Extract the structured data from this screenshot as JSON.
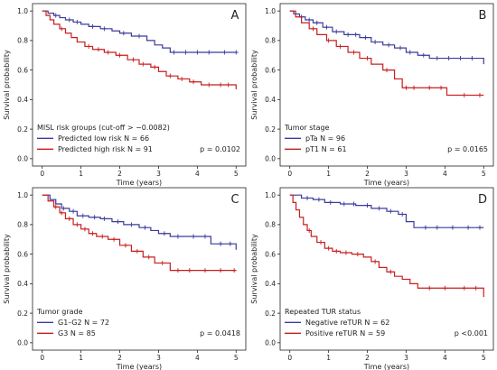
{
  "chart_data": [
    {
      "type": "line",
      "panel_letter": "A",
      "xlabel": "Time (years)",
      "ylabel": "Survival probability",
      "xlim": [
        0,
        5
      ],
      "ylim": [
        0,
        1
      ],
      "xticks": [
        "0",
        "1",
        "2",
        "3",
        "4",
        "5"
      ],
      "yticks": [
        "0.0",
        "0.2",
        "0.4",
        "0.6",
        "0.8",
        "1.0"
      ],
      "legend_title": "MISL risk groups (cut-off > −0.0082)",
      "legend_position": "bottom-left",
      "pvalue": "p = 0.0102",
      "series": [
        {
          "name": "Predicted low risk N = 66",
          "color": "#3b3b9c",
          "x": [
            0,
            0.15,
            0.3,
            0.45,
            0.6,
            0.8,
            1.0,
            1.2,
            1.5,
            1.8,
            2.0,
            2.3,
            2.7,
            2.9,
            3.1,
            3.3,
            5.0
          ],
          "y": [
            1.0,
            0.985,
            0.97,
            0.955,
            0.94,
            0.925,
            0.91,
            0.895,
            0.88,
            0.865,
            0.85,
            0.83,
            0.8,
            0.77,
            0.75,
            0.72,
            0.72
          ],
          "censor_x": [
            0.35,
            0.7,
            0.9,
            1.3,
            1.6,
            2.1,
            2.5,
            3.4,
            3.7,
            4.0,
            4.3,
            4.7,
            5.0
          ]
        },
        {
          "name": "Predicted high risk N = 91",
          "color": "#c81e1e",
          "x": [
            0,
            0.1,
            0.2,
            0.3,
            0.45,
            0.6,
            0.75,
            0.9,
            1.1,
            1.3,
            1.6,
            1.9,
            2.2,
            2.5,
            2.8,
            3.0,
            3.2,
            3.5,
            3.8,
            4.1,
            4.9,
            5.0
          ],
          "y": [
            1.0,
            0.97,
            0.94,
            0.91,
            0.88,
            0.85,
            0.82,
            0.79,
            0.76,
            0.74,
            0.72,
            0.7,
            0.67,
            0.64,
            0.62,
            0.59,
            0.56,
            0.54,
            0.52,
            0.5,
            0.5,
            0.47
          ],
          "censor_x": [
            0.5,
            1.2,
            1.45,
            1.7,
            2.0,
            2.35,
            2.6,
            2.9,
            3.3,
            3.6,
            3.9,
            4.3,
            4.6,
            4.8
          ]
        }
      ]
    },
    {
      "type": "line",
      "panel_letter": "B",
      "xlabel": "Time (years)",
      "ylabel": "Survival probability",
      "xlim": [
        0,
        5
      ],
      "ylim": [
        0,
        1
      ],
      "xticks": [
        "0",
        "1",
        "2",
        "3",
        "4",
        "5"
      ],
      "yticks": [
        "0.0",
        "0.2",
        "0.4",
        "0.6",
        "0.8",
        "1.0"
      ],
      "legend_title": "Tumor stage",
      "legend_position": "bottom-left",
      "pvalue": "p = 0.0165",
      "series": [
        {
          "name": "pTa N = 96",
          "color": "#3b3b9c",
          "x": [
            0,
            0.1,
            0.25,
            0.4,
            0.6,
            0.85,
            1.1,
            1.4,
            1.8,
            2.1,
            2.4,
            2.7,
            3.0,
            3.3,
            3.6,
            4.95,
            5.0
          ],
          "y": [
            1.0,
            0.98,
            0.96,
            0.94,
            0.92,
            0.89,
            0.86,
            0.84,
            0.82,
            0.79,
            0.77,
            0.75,
            0.72,
            0.7,
            0.68,
            0.68,
            0.64
          ],
          "censor_x": [
            0.3,
            0.5,
            0.7,
            0.95,
            1.2,
            1.5,
            1.7,
            1.95,
            2.2,
            2.55,
            2.85,
            3.1,
            3.45,
            3.8,
            4.1,
            4.4,
            4.7
          ]
        },
        {
          "name": "pT1 N = 61",
          "color": "#c81e1e",
          "x": [
            0,
            0.15,
            0.3,
            0.5,
            0.7,
            0.95,
            1.2,
            1.5,
            1.8,
            2.1,
            2.4,
            2.7,
            2.9,
            3.3,
            4.05,
            5.0
          ],
          "y": [
            1.0,
            0.96,
            0.92,
            0.88,
            0.84,
            0.8,
            0.76,
            0.72,
            0.68,
            0.64,
            0.6,
            0.54,
            0.48,
            0.48,
            0.43,
            0.43
          ],
          "censor_x": [
            0.6,
            1.0,
            1.3,
            1.65,
            2.0,
            2.5,
            3.0,
            3.2,
            3.6,
            3.9,
            4.5,
            4.9
          ]
        }
      ]
    },
    {
      "type": "line",
      "panel_letter": "C",
      "xlabel": "Time (years)",
      "ylabel": "Survival probability",
      "xlim": [
        0,
        5
      ],
      "ylim": [
        0,
        1
      ],
      "xticks": [
        "0",
        "1",
        "2",
        "3",
        "4",
        "5"
      ],
      "yticks": [
        "0.0",
        "0.2",
        "0.4",
        "0.6",
        "0.8",
        "1.0"
      ],
      "legend_title": "Tumor grade",
      "legend_position": "bottom-left",
      "pvalue": "p = 0.0418",
      "series": [
        {
          "name": "G1–G2 N = 72",
          "color": "#3b3b9c",
          "x": [
            0,
            0.2,
            0.35,
            0.5,
            0.7,
            0.9,
            1.2,
            1.5,
            1.8,
            2.1,
            2.5,
            2.8,
            3.0,
            3.3,
            4.35,
            5.0
          ],
          "y": [
            1.0,
            0.97,
            0.94,
            0.91,
            0.89,
            0.86,
            0.85,
            0.84,
            0.82,
            0.8,
            0.78,
            0.76,
            0.74,
            0.72,
            0.67,
            0.63
          ],
          "censor_x": [
            0.55,
            0.8,
            1.05,
            1.35,
            1.6,
            1.95,
            2.3,
            2.65,
            3.15,
            3.5,
            3.9,
            4.2,
            4.6,
            4.85
          ]
        },
        {
          "name": "G3 N = 85",
          "color": "#c81e1e",
          "x": [
            0,
            0.15,
            0.3,
            0.45,
            0.6,
            0.8,
            1.0,
            1.2,
            1.4,
            1.7,
            2.0,
            2.3,
            2.6,
            2.9,
            3.3,
            5.0
          ],
          "y": [
            1.0,
            0.96,
            0.92,
            0.88,
            0.84,
            0.8,
            0.77,
            0.74,
            0.72,
            0.7,
            0.66,
            0.62,
            0.58,
            0.54,
            0.49,
            0.49
          ],
          "censor_x": [
            0.35,
            0.5,
            0.7,
            0.9,
            1.1,
            1.3,
            1.55,
            1.85,
            2.15,
            2.45,
            2.75,
            3.1,
            3.5,
            3.8,
            4.2,
            4.6,
            4.95
          ]
        }
      ]
    },
    {
      "type": "line",
      "panel_letter": "D",
      "xlabel": "Time (years)",
      "ylabel": "Survival probability",
      "xlim": [
        0,
        5
      ],
      "ylim": [
        0,
        1
      ],
      "xticks": [
        "0",
        "1",
        "2",
        "3",
        "4",
        "5"
      ],
      "yticks": [
        "0.0",
        "0.2",
        "0.4",
        "0.6",
        "0.8",
        "1.0"
      ],
      "legend_title": "Repeated TUR status",
      "legend_position": "bottom-left",
      "pvalue": "p <0.001",
      "series": [
        {
          "name": "Negative reTUR N = 62",
          "color": "#3b3b9c",
          "x": [
            0,
            0.3,
            0.6,
            0.9,
            1.3,
            1.7,
            2.1,
            2.5,
            2.8,
            3.0,
            3.2,
            5.0
          ],
          "y": [
            1.0,
            0.98,
            0.97,
            0.95,
            0.94,
            0.93,
            0.91,
            0.89,
            0.87,
            0.82,
            0.78,
            0.78
          ],
          "censor_x": [
            0.45,
            0.75,
            1.05,
            1.4,
            1.65,
            2.0,
            2.3,
            2.6,
            2.9,
            3.5,
            3.8,
            4.2,
            4.6,
            4.9
          ]
        },
        {
          "name": "Positive reTUR N = 59",
          "color": "#c81e1e",
          "x": [
            0,
            0.08,
            0.16,
            0.25,
            0.35,
            0.45,
            0.55,
            0.7,
            0.9,
            1.1,
            1.3,
            1.6,
            1.9,
            2.1,
            2.3,
            2.5,
            2.7,
            2.9,
            3.1,
            3.3,
            4.95,
            5.0
          ],
          "y": [
            1.0,
            0.95,
            0.9,
            0.85,
            0.8,
            0.76,
            0.72,
            0.68,
            0.64,
            0.62,
            0.61,
            0.6,
            0.58,
            0.55,
            0.51,
            0.48,
            0.45,
            0.43,
            0.4,
            0.37,
            0.37,
            0.31
          ],
          "censor_x": [
            0.5,
            0.8,
            1.0,
            1.2,
            1.45,
            1.75,
            2.2,
            2.6,
            3.6,
            4.0,
            4.5,
            4.8
          ]
        }
      ]
    }
  ]
}
